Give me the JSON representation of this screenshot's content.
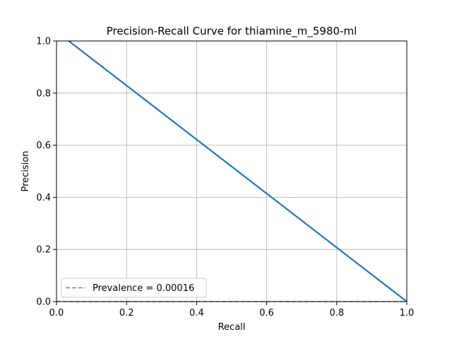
{
  "chart_data": {
    "type": "line",
    "title": "Precision-Recall Curve for thiamine_m_5980-ml",
    "xlabel": "Recall",
    "ylabel": "Precision",
    "xlim": [
      0.0,
      1.0
    ],
    "ylim": [
      0.0,
      1.0
    ],
    "x_ticks": [
      "0.0",
      "0.2",
      "0.4",
      "0.6",
      "0.8",
      "1.0"
    ],
    "y_ticks": [
      "0.0",
      "0.2",
      "0.4",
      "0.6",
      "0.8",
      "1.0"
    ],
    "grid": true,
    "legend_position": "lower-left",
    "series": [
      {
        "color": "#1f77b4",
        "style": "solid",
        "x": [
          0.035,
          1.0
        ],
        "y": [
          1.0,
          0.0
        ]
      },
      {
        "name": "Prevalence = 0.00016",
        "color": "#808080",
        "style": "dashed",
        "x": [
          0.0,
          1.0
        ],
        "y": [
          0.00016,
          0.00016
        ]
      }
    ]
  }
}
